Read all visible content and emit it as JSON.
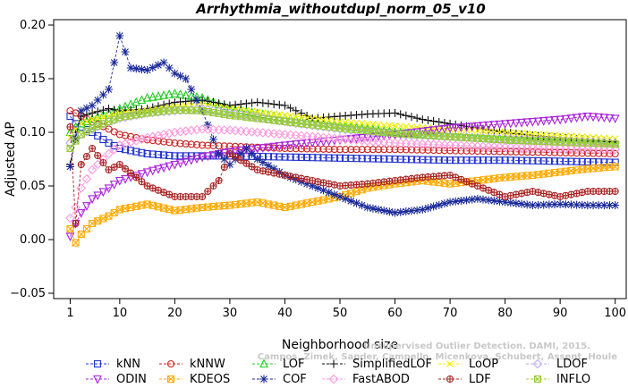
{
  "chart_data": {
    "type": "line",
    "title": "Arrhythmia_withoutdupl_norm_05_v10",
    "xlabel": "Neighborhood size",
    "ylabel": "Adjusted AP",
    "xlim": [
      1,
      100
    ],
    "ylim": [
      -0.05,
      0.2
    ],
    "x_ticks": [
      1,
      10,
      20,
      30,
      40,
      50,
      60,
      70,
      80,
      90,
      100
    ],
    "y_ticks": [
      -0.05,
      0.0,
      0.05,
      0.1,
      0.15,
      0.2
    ],
    "y_tick_labels": [
      "−0.05",
      "0.00",
      "0.05",
      "0.10",
      "0.15",
      "0.20"
    ],
    "grid": false,
    "legend_position": "bottom",
    "watermark": [
      "Unsupervised Outlier Detection. DAMI, 2015.",
      "Campos, Zimek, Sander, Campello, Micenkova, Schubert, Assent, Houle"
    ],
    "series": [
      {
        "name": "kNN",
        "color": "#2233cc",
        "marker": "square",
        "linestyle": "dashed",
        "x": [
          1,
          2,
          3,
          5,
          8,
          10,
          15,
          20,
          25,
          30,
          40,
          50,
          60,
          70,
          80,
          90,
          100
        ],
        "values": [
          0.115,
          0.108,
          0.105,
          0.1,
          0.09,
          0.085,
          0.08,
          0.078,
          0.078,
          0.078,
          0.077,
          0.076,
          0.075,
          0.074,
          0.074,
          0.073,
          0.072
        ]
      },
      {
        "name": "kNNW",
        "color": "#cc2222",
        "marker": "circle",
        "linestyle": "dashed",
        "x": [
          1,
          2,
          3,
          5,
          8,
          10,
          15,
          20,
          25,
          30,
          40,
          50,
          60,
          70,
          80,
          90,
          100
        ],
        "values": [
          0.12,
          0.118,
          0.115,
          0.11,
          0.103,
          0.098,
          0.093,
          0.09,
          0.088,
          0.087,
          0.085,
          0.084,
          0.084,
          0.083,
          0.082,
          0.081,
          0.08
        ]
      },
      {
        "name": "LOF",
        "color": "#22cc22",
        "marker": "triangle-up",
        "linestyle": "dashed",
        "x": [
          1,
          2,
          3,
          5,
          8,
          10,
          15,
          20,
          25,
          30,
          40,
          50,
          60,
          70,
          80,
          90,
          100
        ],
        "values": [
          0.1,
          0.105,
          0.108,
          0.112,
          0.118,
          0.122,
          0.132,
          0.136,
          0.132,
          0.122,
          0.113,
          0.106,
          0.1,
          0.096,
          0.093,
          0.091,
          0.089
        ]
      },
      {
        "name": "SimplifiedLOF",
        "color": "#111111",
        "marker": "plus",
        "linestyle": "dashed",
        "x": [
          1,
          2,
          3,
          5,
          8,
          10,
          15,
          20,
          25,
          30,
          35,
          40,
          45,
          50,
          55,
          60,
          65,
          70,
          75,
          80,
          85,
          90,
          95,
          100
        ],
        "values": [
          0.07,
          0.1,
          0.115,
          0.118,
          0.122,
          0.12,
          0.122,
          0.128,
          0.13,
          0.125,
          0.128,
          0.125,
          0.113,
          0.115,
          0.117,
          0.118,
          0.112,
          0.108,
          0.104,
          0.1,
          0.097,
          0.095,
          0.093,
          0.091
        ]
      },
      {
        "name": "LoOP",
        "color": "#eeee00",
        "marker": "x",
        "linestyle": "dashed",
        "x": [
          1,
          2,
          3,
          5,
          8,
          10,
          15,
          20,
          25,
          30,
          40,
          50,
          60,
          70,
          80,
          90,
          100
        ],
        "values": [
          0.095,
          0.103,
          0.108,
          0.112,
          0.115,
          0.118,
          0.12,
          0.124,
          0.126,
          0.122,
          0.116,
          0.11,
          0.106,
          0.103,
          0.1,
          0.097,
          0.094
        ]
      },
      {
        "name": "LDOF",
        "color": "#bbaaee",
        "marker": "diamond",
        "linestyle": "dashed",
        "x": [
          1,
          2,
          3,
          5,
          8,
          10,
          15,
          20,
          25,
          30,
          40,
          50,
          60,
          70,
          80,
          90,
          100
        ],
        "values": [
          0.09,
          0.095,
          0.098,
          0.103,
          0.11,
          0.113,
          0.118,
          0.12,
          0.122,
          0.118,
          0.11,
          0.103,
          0.098,
          0.096,
          0.094,
          0.092,
          0.09
        ]
      },
      {
        "name": "ODIN",
        "color": "#aa22dd",
        "marker": "triangle-down",
        "linestyle": "dashed",
        "x": [
          1,
          2,
          3,
          5,
          8,
          10,
          15,
          20,
          25,
          30,
          40,
          50,
          60,
          70,
          80,
          90,
          95,
          100
        ],
        "values": [
          0.003,
          0.015,
          0.025,
          0.038,
          0.048,
          0.055,
          0.063,
          0.07,
          0.077,
          0.082,
          0.088,
          0.093,
          0.098,
          0.104,
          0.108,
          0.112,
          0.115,
          0.113
        ]
      },
      {
        "name": "KDEOS",
        "color": "#ffaa00",
        "marker": "square-x",
        "linestyle": "dashed",
        "x": [
          1,
          2,
          3,
          5,
          8,
          10,
          15,
          20,
          25,
          30,
          35,
          40,
          45,
          50,
          55,
          60,
          65,
          70,
          75,
          80,
          85,
          90,
          95,
          100
        ],
        "values": [
          0.01,
          -0.003,
          0.005,
          0.015,
          0.022,
          0.028,
          0.033,
          0.027,
          0.03,
          0.032,
          0.035,
          0.03,
          0.035,
          0.04,
          0.048,
          0.052,
          0.055,
          0.052,
          0.055,
          0.058,
          0.06,
          0.063,
          0.066,
          0.068
        ]
      },
      {
        "name": "COF",
        "color": "#1a2a99",
        "marker": "star",
        "linestyle": "dashed",
        "x": [
          1,
          3,
          5,
          8,
          10,
          12,
          15,
          18,
          20,
          22,
          25,
          28,
          30,
          33,
          35,
          40,
          45,
          50,
          55,
          60,
          65,
          70,
          75,
          80,
          85,
          90,
          95,
          100
        ],
        "values": [
          0.068,
          0.12,
          0.125,
          0.14,
          0.19,
          0.16,
          0.158,
          0.165,
          0.155,
          0.15,
          0.12,
          0.08,
          0.07,
          0.085,
          0.075,
          0.06,
          0.05,
          0.04,
          0.03,
          0.025,
          0.028,
          0.035,
          0.038,
          0.035,
          0.032,
          0.033,
          0.032,
          0.032
        ]
      },
      {
        "name": "FastABOD",
        "color": "#ff99dd",
        "marker": "diamond",
        "linestyle": "dashed",
        "x": [
          1,
          2,
          3,
          5,
          8,
          10,
          15,
          20,
          25,
          30,
          40,
          50,
          60,
          70,
          80,
          90,
          100
        ],
        "values": [
          0.02,
          0.03,
          0.048,
          0.065,
          0.08,
          0.088,
          0.095,
          0.1,
          0.103,
          0.102,
          0.098,
          0.094,
          0.09,
          0.088,
          0.086,
          0.085,
          0.084
        ]
      },
      {
        "name": "LDF",
        "color": "#aa2222",
        "marker": "circle-plus",
        "linestyle": "dashed",
        "x": [
          1,
          2,
          3,
          5,
          8,
          10,
          15,
          20,
          25,
          28,
          30,
          35,
          40,
          45,
          50,
          55,
          60,
          65,
          70,
          75,
          80,
          85,
          90,
          95,
          100
        ],
        "values": [
          0.105,
          0.015,
          0.07,
          0.085,
          0.065,
          0.07,
          0.05,
          0.04,
          0.04,
          0.055,
          0.08,
          0.065,
          0.06,
          0.055,
          0.05,
          0.052,
          0.055,
          0.058,
          0.06,
          0.05,
          0.04,
          0.045,
          0.04,
          0.045,
          0.045
        ]
      },
      {
        "name": "INFLO",
        "color": "#99cc33",
        "marker": "square-x",
        "linestyle": "dashed",
        "x": [
          1,
          2,
          3,
          5,
          8,
          10,
          15,
          20,
          25,
          30,
          40,
          50,
          60,
          70,
          80,
          90,
          100
        ],
        "values": [
          0.085,
          0.092,
          0.098,
          0.104,
          0.11,
          0.114,
          0.118,
          0.121,
          0.12,
          0.116,
          0.11,
          0.104,
          0.099,
          0.096,
          0.093,
          0.091,
          0.089
        ]
      }
    ]
  }
}
